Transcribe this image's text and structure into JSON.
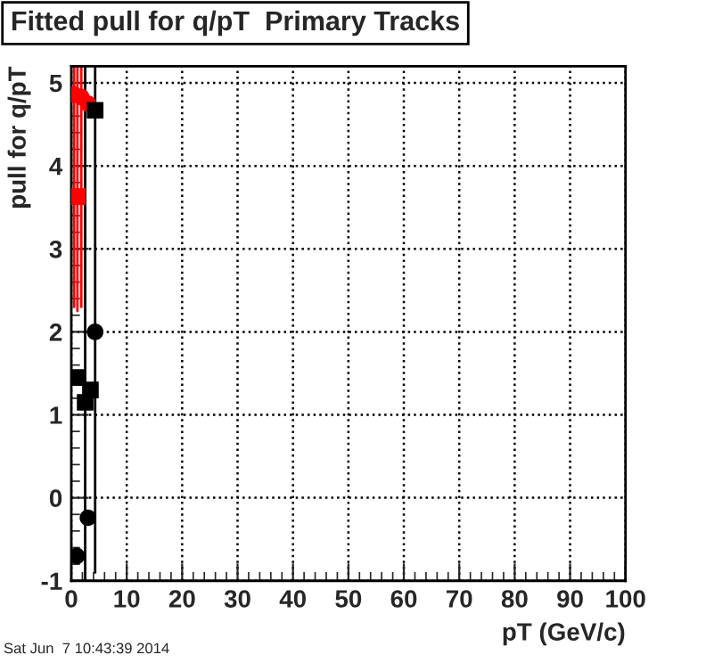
{
  "chart_data": {
    "type": "scatter",
    "title": "Fitted pull for q/pT  Primary Tracks",
    "xlabel": "pT (GeV/c)",
    "ylabel": "pull for q/pT",
    "annotations": [
      "Sat Jun  7 10:43:39 2014"
    ],
    "series": [
      {
        "color": "#ff0000",
        "marker": "circle",
        "x": [
          0.5,
          1.8,
          3.0
        ],
        "values": [
          4.86,
          4.83,
          4.75
        ],
        "errors": [
          [
            2.3,
            5.2
          ],
          [
            2.3,
            5.2
          ],
          null
        ]
      },
      {
        "color": "#ff0000",
        "marker": "square",
        "x": [
          1.1
        ],
        "values": [
          3.63
        ],
        "errors": [
          [
            2.25,
            5.2
          ]
        ]
      },
      {
        "color": "#000000",
        "marker": "square",
        "x": [
          1.0,
          2.5,
          3.45,
          4.3
        ],
        "values": [
          1.45,
          1.15,
          1.3,
          4.67
        ],
        "errors": [
          null,
          [
            -1.0,
            5.2
          ],
          null,
          [
            -0.9,
            5.2
          ]
        ]
      },
      {
        "color": "#000000",
        "marker": "circle",
        "x": [
          0.98,
          3.0,
          4.3
        ],
        "values": [
          -0.7,
          -0.24,
          2.0
        ]
      }
    ],
    "xlim": [
      0,
      100
    ],
    "ylim": [
      -1,
      5.2
    ],
    "xticks": [
      0,
      10,
      20,
      30,
      40,
      50,
      60,
      70,
      80,
      90,
      100
    ],
    "yticks": [
      -1,
      0,
      1,
      2,
      3,
      4,
      5
    ],
    "grid": true
  }
}
